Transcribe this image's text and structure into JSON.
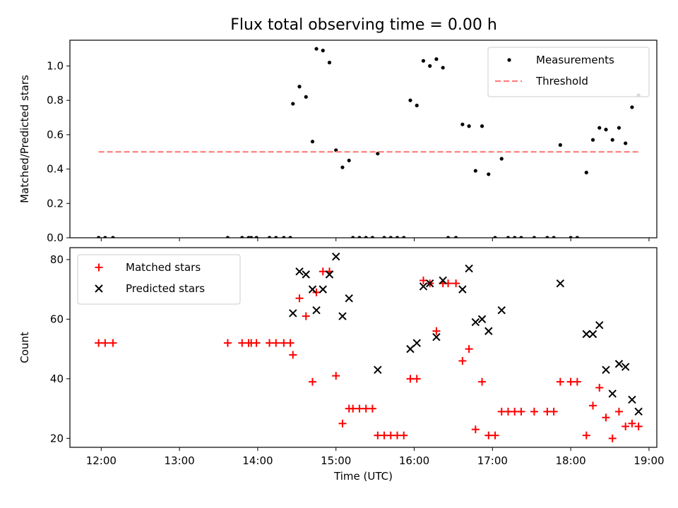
{
  "title": "Flux total observing time = 0.00 h",
  "chart_data": [
    {
      "type": "scatter",
      "ylabel": "Matched/Predicted stars",
      "xlabel": "",
      "xlim": [
        "11:36",
        "19:06"
      ],
      "ylim": [
        0,
        1.15
      ],
      "x_ticks": [
        "12:00",
        "13:00",
        "14:00",
        "15:00",
        "16:00",
        "17:00",
        "18:00",
        "19:00"
      ],
      "x_ticks_labeled": false,
      "y_ticks": [
        "0.0",
        "0.2",
        "0.4",
        "0.6",
        "0.8",
        "1.0"
      ],
      "legend_position": "top-right",
      "series": [
        {
          "name": "Measurements",
          "marker": "dot",
          "color": "#000000",
          "points": [
            [
              "11:58",
              0
            ],
            [
              "12:03",
              0
            ],
            [
              "12:09",
              0
            ],
            [
              "13:37",
              0
            ],
            [
              "13:48",
              0
            ],
            [
              "13:53",
              0
            ],
            [
              "13:55",
              0
            ],
            [
              "13:59",
              0
            ],
            [
              "14:09",
              0
            ],
            [
              "14:14",
              0
            ],
            [
              "14:20",
              0
            ],
            [
              "14:25",
              0
            ],
            [
              "14:27",
              0.78
            ],
            [
              "14:32",
              0.88
            ],
            [
              "14:37",
              0.82
            ],
            [
              "14:42",
              0.56
            ],
            [
              "14:45",
              1.1
            ],
            [
              "14:50",
              1.09
            ],
            [
              "14:55",
              1.02
            ],
            [
              "15:00",
              0.51
            ],
            [
              "15:05",
              0.41
            ],
            [
              "15:10",
              0.45
            ],
            [
              "15:13",
              0
            ],
            [
              "15:18",
              0
            ],
            [
              "15:23",
              0
            ],
            [
              "15:28",
              0
            ],
            [
              "15:32",
              0.49
            ],
            [
              "15:37",
              0
            ],
            [
              "15:42",
              0
            ],
            [
              "15:47",
              0
            ],
            [
              "15:52",
              0
            ],
            [
              "15:57",
              0.8
            ],
            [
              "16:02",
              0.77
            ],
            [
              "16:07",
              1.03
            ],
            [
              "16:12",
              1.0
            ],
            [
              "16:17",
              1.04
            ],
            [
              "16:22",
              0.99
            ],
            [
              "16:26",
              0
            ],
            [
              "16:32",
              0
            ],
            [
              "16:37",
              0.66
            ],
            [
              "16:42",
              0.65
            ],
            [
              "16:47",
              0.39
            ],
            [
              "16:52",
              0.65
            ],
            [
              "16:57",
              0.37
            ],
            [
              "17:02",
              0
            ],
            [
              "17:07",
              0.46
            ],
            [
              "17:12",
              0
            ],
            [
              "17:17",
              0
            ],
            [
              "17:22",
              0
            ],
            [
              "17:32",
              0
            ],
            [
              "17:42",
              0
            ],
            [
              "17:47",
              0
            ],
            [
              "17:52",
              0.54
            ],
            [
              "18:00",
              0
            ],
            [
              "18:05",
              0
            ],
            [
              "18:12",
              0.38
            ],
            [
              "18:17",
              0.57
            ],
            [
              "18:22",
              0.64
            ],
            [
              "18:27",
              0.63
            ],
            [
              "18:32",
              0.57
            ],
            [
              "18:37",
              0.64
            ],
            [
              "18:42",
              0.55
            ],
            [
              "18:47",
              0.76
            ],
            [
              "18:52",
              0.83
            ]
          ]
        },
        {
          "name": "Threshold",
          "marker": "dashed-line",
          "color": "#ff7f7f",
          "points": [
            [
              "11:58",
              0.5
            ],
            [
              "18:52",
              0.5
            ]
          ]
        }
      ]
    },
    {
      "type": "scatter",
      "ylabel": "Count",
      "xlabel": "Time (UTC)",
      "xlim": [
        "11:36",
        "19:06"
      ],
      "ylim": [
        17,
        84
      ],
      "x_ticks": [
        "12:00",
        "13:00",
        "14:00",
        "15:00",
        "16:00",
        "17:00",
        "18:00",
        "19:00"
      ],
      "x_ticks_labeled": true,
      "y_ticks": [
        "20",
        "40",
        "60",
        "80"
      ],
      "legend_position": "top-left",
      "series": [
        {
          "name": "Matched stars",
          "marker": "plus",
          "color": "#ff0000",
          "points": [
            [
              "11:58",
              52
            ],
            [
              "12:03",
              52
            ],
            [
              "12:09",
              52
            ],
            [
              "13:37",
              52
            ],
            [
              "13:48",
              52
            ],
            [
              "13:53",
              52
            ],
            [
              "13:55",
              52
            ],
            [
              "13:59",
              52
            ],
            [
              "14:09",
              52
            ],
            [
              "14:14",
              52
            ],
            [
              "14:20",
              52
            ],
            [
              "14:25",
              52
            ],
            [
              "14:27",
              48
            ],
            [
              "14:32",
              67
            ],
            [
              "14:37",
              61
            ],
            [
              "14:42",
              39
            ],
            [
              "14:45",
              69
            ],
            [
              "14:50",
              76
            ],
            [
              "14:55",
              76
            ],
            [
              "15:00",
              41
            ],
            [
              "15:05",
              25
            ],
            [
              "15:10",
              30
            ],
            [
              "15:13",
              30
            ],
            [
              "15:18",
              30
            ],
            [
              "15:23",
              30
            ],
            [
              "15:28",
              30
            ],
            [
              "15:32",
              21
            ],
            [
              "15:37",
              21
            ],
            [
              "15:42",
              21
            ],
            [
              "15:47",
              21
            ],
            [
              "15:52",
              21
            ],
            [
              "15:57",
              40
            ],
            [
              "16:02",
              40
            ],
            [
              "16:07",
              73
            ],
            [
              "16:12",
              72
            ],
            [
              "16:17",
              56
            ],
            [
              "16:22",
              72
            ],
            [
              "16:26",
              72
            ],
            [
              "16:32",
              72
            ],
            [
              "16:37",
              46
            ],
            [
              "16:42",
              50
            ],
            [
              "16:47",
              23
            ],
            [
              "16:52",
              39
            ],
            [
              "16:57",
              21
            ],
            [
              "17:02",
              21
            ],
            [
              "17:07",
              29
            ],
            [
              "17:12",
              29
            ],
            [
              "17:17",
              29
            ],
            [
              "17:22",
              29
            ],
            [
              "17:32",
              29
            ],
            [
              "17:42",
              29
            ],
            [
              "17:47",
              29
            ],
            [
              "17:52",
              39
            ],
            [
              "18:00",
              39
            ],
            [
              "18:05",
              39
            ],
            [
              "18:12",
              21
            ],
            [
              "18:17",
              31
            ],
            [
              "18:22",
              37
            ],
            [
              "18:27",
              27
            ],
            [
              "18:32",
              20
            ],
            [
              "18:37",
              29
            ],
            [
              "18:42",
              24
            ],
            [
              "18:47",
              25
            ],
            [
              "18:52",
              24
            ]
          ]
        },
        {
          "name": "Predicted stars",
          "marker": "x",
          "color": "#000000",
          "points": [
            [
              "14:27",
              62
            ],
            [
              "14:32",
              76
            ],
            [
              "14:37",
              75
            ],
            [
              "14:42",
              70
            ],
            [
              "14:45",
              63
            ],
            [
              "14:50",
              70
            ],
            [
              "14:55",
              75
            ],
            [
              "15:00",
              81
            ],
            [
              "15:05",
              61
            ],
            [
              "15:10",
              67
            ],
            [
              "15:32",
              43
            ],
            [
              "15:57",
              50
            ],
            [
              "16:02",
              52
            ],
            [
              "16:07",
              71
            ],
            [
              "16:12",
              72
            ],
            [
              "16:17",
              54
            ],
            [
              "16:22",
              73
            ],
            [
              "16:37",
              70
            ],
            [
              "16:42",
              77
            ],
            [
              "16:47",
              59
            ],
            [
              "16:52",
              60
            ],
            [
              "16:57",
              56
            ],
            [
              "17:07",
              63
            ],
            [
              "17:52",
              72
            ],
            [
              "18:12",
              55
            ],
            [
              "18:17",
              55
            ],
            [
              "18:22",
              58
            ],
            [
              "18:27",
              43
            ],
            [
              "18:32",
              35
            ],
            [
              "18:37",
              45
            ],
            [
              "18:42",
              44
            ],
            [
              "18:47",
              33
            ],
            [
              "18:52",
              29
            ]
          ]
        }
      ]
    }
  ]
}
